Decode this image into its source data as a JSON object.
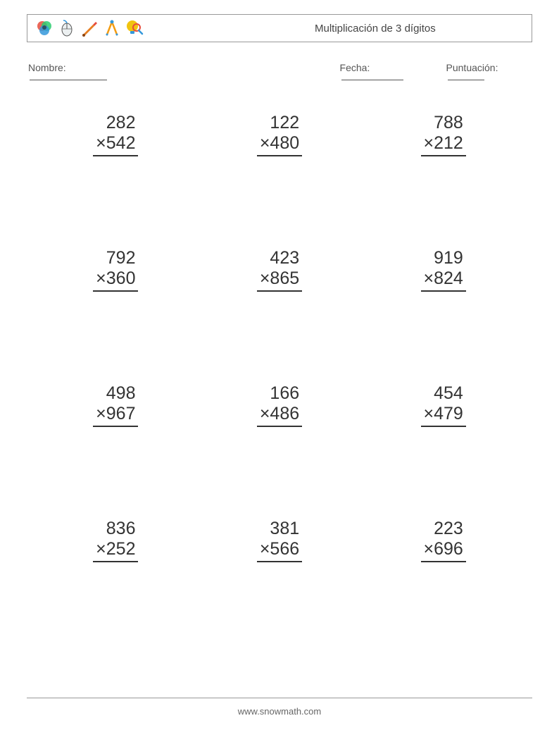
{
  "title": "Multiplicación de 3 dígitos",
  "labels": {
    "nombre": "Nombre:",
    "fecha": "Fecha:",
    "puntuacion": "Puntuación:"
  },
  "styling": {
    "text_color": "#333333",
    "border_color": "#999999",
    "label_color": "#555555",
    "background_color": "#ffffff",
    "problem_fontsize": 25,
    "label_fontsize": 14,
    "title_fontsize": 15,
    "grid_cols": 3,
    "grid_rows": 4,
    "operator": "×"
  },
  "icons": {
    "venn": {
      "c1": "#e74c3c",
      "c2": "#3498db",
      "c3": "#f1c40f"
    },
    "mouse": {
      "body": "#ecf0f1",
      "accent": "#3498db",
      "outline": "#555555"
    },
    "brush": {
      "handle": "#e67e22",
      "tip": "#8b4513"
    },
    "dividers": {
      "arm": "#f39c12",
      "joint": "#3498db"
    },
    "bulb": {
      "glass": "#f1c40f",
      "base": "#3498db",
      "lens": "#e74c3c"
    }
  },
  "problems": [
    {
      "multiplicand": "282",
      "multiplier": "542"
    },
    {
      "multiplicand": "122",
      "multiplier": "480"
    },
    {
      "multiplicand": "788",
      "multiplier": "212"
    },
    {
      "multiplicand": "792",
      "multiplier": "360"
    },
    {
      "multiplicand": "423",
      "multiplier": "865"
    },
    {
      "multiplicand": "919",
      "multiplier": "824"
    },
    {
      "multiplicand": "498",
      "multiplier": "967"
    },
    {
      "multiplicand": "166",
      "multiplier": "486"
    },
    {
      "multiplicand": "454",
      "multiplier": "479"
    },
    {
      "multiplicand": "836",
      "multiplier": "252"
    },
    {
      "multiplicand": "381",
      "multiplier": "566"
    },
    {
      "multiplicand": "223",
      "multiplier": "696"
    }
  ],
  "footer": "www.snowmath.com"
}
